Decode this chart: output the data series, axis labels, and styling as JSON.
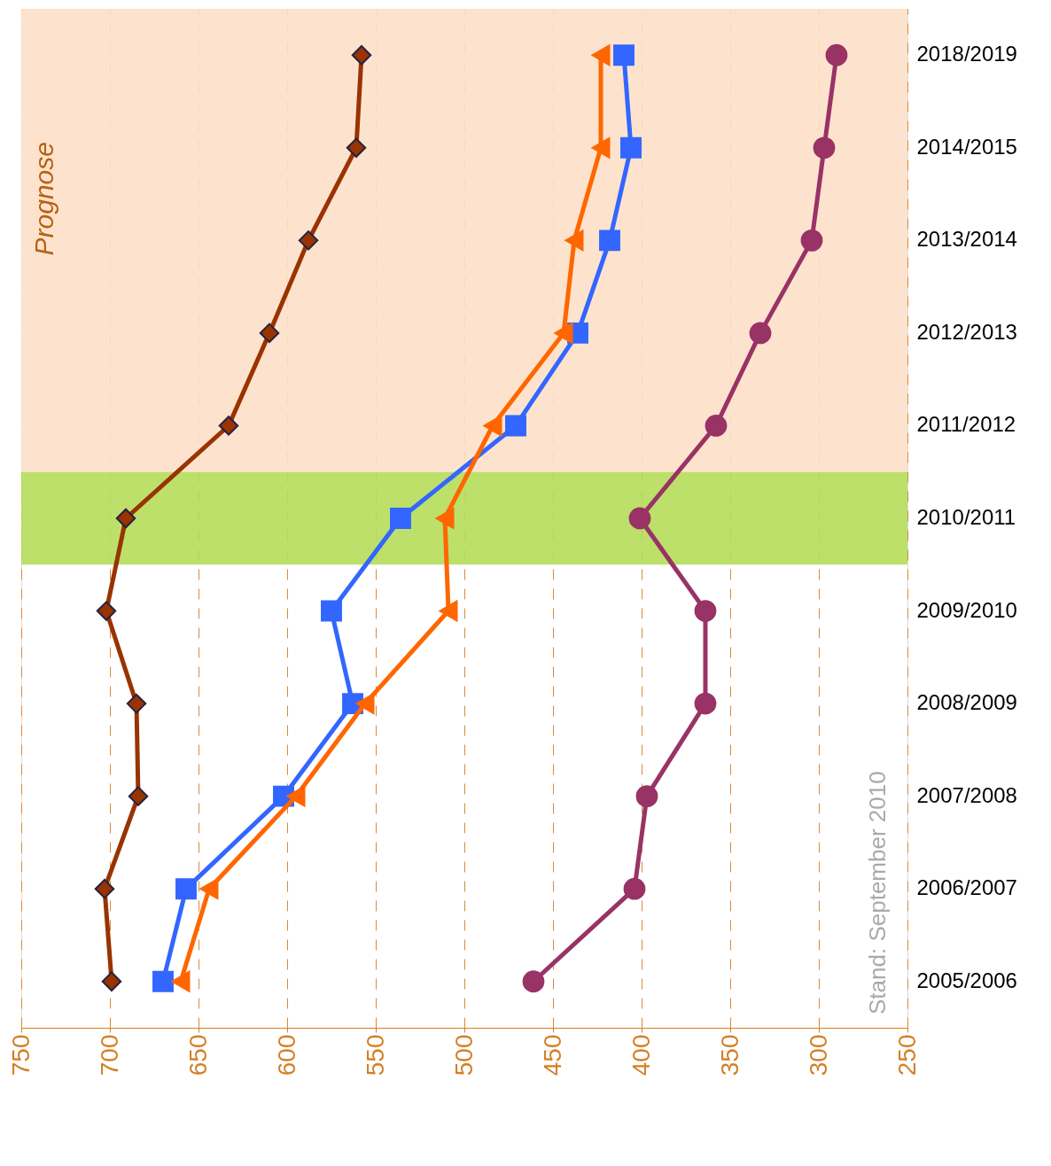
{
  "chart_data": {
    "type": "line",
    "orientation": "horizontal",
    "categories": [
      "2018/2019",
      "2014/2015",
      "2013/2014",
      "2012/2013",
      "2011/2012",
      "2010/2011",
      "2009/2010",
      "2008/2009",
      "2007/2008",
      "2006/2007",
      "2005/2006"
    ],
    "series": [
      {
        "color": "#993300",
        "marker": "diamond",
        "values": [
          558,
          561,
          588,
          610,
          633,
          691,
          702,
          685,
          684,
          703,
          699
        ]
      },
      {
        "color": "#3366ff",
        "marker": "square",
        "values": [
          410,
          406,
          418,
          436,
          471,
          536,
          575,
          563,
          602,
          657,
          670
        ]
      },
      {
        "color": "#ff6600",
        "marker": "triangle",
        "values": [
          423,
          423,
          438,
          444,
          484,
          511,
          509,
          556,
          595,
          644,
          660
        ]
      },
      {
        "color": "#993366",
        "marker": "circle",
        "values": [
          290,
          297,
          304,
          333,
          358,
          401,
          364,
          364,
          397,
          404,
          461
        ]
      }
    ],
    "xlim": [
      750,
      250
    ],
    "xticks": [
      750,
      700,
      650,
      600,
      550,
      500,
      450,
      400,
      350,
      300,
      250
    ],
    "grid": "x",
    "bands": [
      {
        "axis": "y",
        "from": "2018/2019",
        "to": "2011/2012",
        "label": "Prognose",
        "color": "#fde0c8"
      },
      {
        "axis": "y",
        "from": "2010/2011",
        "to": "2010/2011",
        "color": "#b5dd5a"
      }
    ],
    "annotations": [
      "Stand: September 2010"
    ]
  }
}
